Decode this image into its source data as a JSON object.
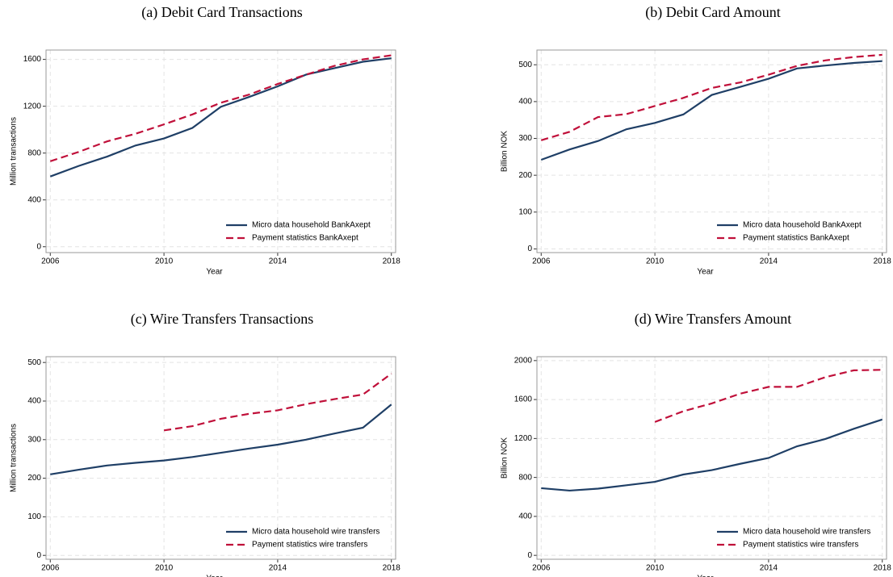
{
  "chart_data": [
    {
      "type": "line",
      "title": "(a) Debit Card Transactions",
      "xlabel": "Year",
      "ylabel": "Million transactions",
      "x": [
        2006,
        2007,
        2008,
        2009,
        2010,
        2011,
        2012,
        2013,
        2014,
        2015,
        2016,
        2017,
        2018
      ],
      "xlim": [
        2005.85,
        2018.15
      ],
      "xticks": [
        2006,
        2010,
        2014,
        2018
      ],
      "ylim": [
        -50,
        1680
      ],
      "yticks": [
        0,
        400,
        800,
        1200,
        1600
      ],
      "grid": true,
      "legend": "lower right",
      "series": [
        {
          "name": "Micro data household BankAxept",
          "color": "#1f3f66",
          "dash": false,
          "values": [
            600,
            690,
            770,
            865,
            925,
            1015,
            1195,
            1280,
            1370,
            1470,
            1525,
            1580,
            1610
          ]
        },
        {
          "name": "Payment statistics BankAxept",
          "color": "#c0103a",
          "dash": true,
          "values": [
            730,
            810,
            900,
            965,
            1045,
            1130,
            1230,
            1300,
            1390,
            1470,
            1545,
            1600,
            1635
          ]
        }
      ]
    },
    {
      "type": "line",
      "title": "(b) Debit Card Amount",
      "xlabel": "Year",
      "ylabel": "Billion NOK",
      "x": [
        2006,
        2007,
        2008,
        2009,
        2010,
        2011,
        2012,
        2013,
        2014,
        2015,
        2016,
        2017,
        2018
      ],
      "xlim": [
        2005.85,
        2018.15
      ],
      "xticks": [
        2006,
        2010,
        2014,
        2018
      ],
      "ylim": [
        -10,
        540
      ],
      "yticks": [
        0,
        100,
        200,
        300,
        400,
        500
      ],
      "grid": true,
      "legend": "lower right",
      "series": [
        {
          "name": "Micro data household BankAxept",
          "color": "#1f3f66",
          "dash": false,
          "values": [
            242,
            270,
            293,
            325,
            342,
            365,
            418,
            440,
            462,
            490,
            498,
            505,
            510
          ]
        },
        {
          "name": "Payment statistics BankAxept",
          "color": "#c0103a",
          "dash": true,
          "values": [
            295,
            318,
            358,
            366,
            388,
            410,
            437,
            452,
            473,
            497,
            512,
            521,
            527
          ]
        }
      ]
    },
    {
      "type": "line",
      "title": "(c) Wire Transfers Transactions",
      "xlabel": "Year",
      "ylabel": "Million transactions",
      "x": [
        2006,
        2007,
        2008,
        2009,
        2010,
        2011,
        2012,
        2013,
        2014,
        2015,
        2016,
        2017,
        2018
      ],
      "xlim": [
        2005.85,
        2018.15
      ],
      "xticks": [
        2006,
        2010,
        2014,
        2018
      ],
      "ylim": [
        -10,
        515
      ],
      "yticks": [
        0,
        100,
        200,
        300,
        400,
        500
      ],
      "grid": true,
      "legend": "lower right",
      "series": [
        {
          "name": "Micro data household wire transfers",
          "color": "#1f3f66",
          "dash": false,
          "values": [
            210,
            222,
            233,
            240,
            246,
            255,
            266,
            277,
            287,
            300,
            316,
            331,
            391
          ]
        },
        {
          "name": "Payment statistics wire transfers",
          "color": "#c0103a",
          "dash": true,
          "values": [
            null,
            null,
            null,
            null,
            324,
            335,
            354,
            367,
            376,
            392,
            405,
            417,
            471
          ]
        }
      ]
    },
    {
      "type": "line",
      "title": "(d) Wire Transfers Amount",
      "xlabel": "Year",
      "ylabel": "Billion NOK",
      "x": [
        2006,
        2007,
        2008,
        2009,
        2010,
        2011,
        2012,
        2013,
        2014,
        2015,
        2016,
        2017,
        2018
      ],
      "xlim": [
        2005.85,
        2018.15
      ],
      "xticks": [
        2006,
        2010,
        2014,
        2018
      ],
      "ylim": [
        -40,
        2040
      ],
      "yticks": [
        0,
        400,
        800,
        1200,
        1600,
        2000
      ],
      "grid": true,
      "legend": "lower right",
      "series": [
        {
          "name": "Micro data household wire transfers",
          "color": "#1f3f66",
          "dash": false,
          "values": [
            690,
            665,
            685,
            720,
            755,
            830,
            875,
            940,
            1000,
            1120,
            1195,
            1300,
            1395
          ]
        },
        {
          "name": "Payment statistics wire transfers",
          "color": "#c0103a",
          "dash": true,
          "values": [
            null,
            null,
            null,
            null,
            1370,
            1480,
            1560,
            1660,
            1730,
            1730,
            1830,
            1900,
            1905
          ]
        }
      ]
    }
  ]
}
